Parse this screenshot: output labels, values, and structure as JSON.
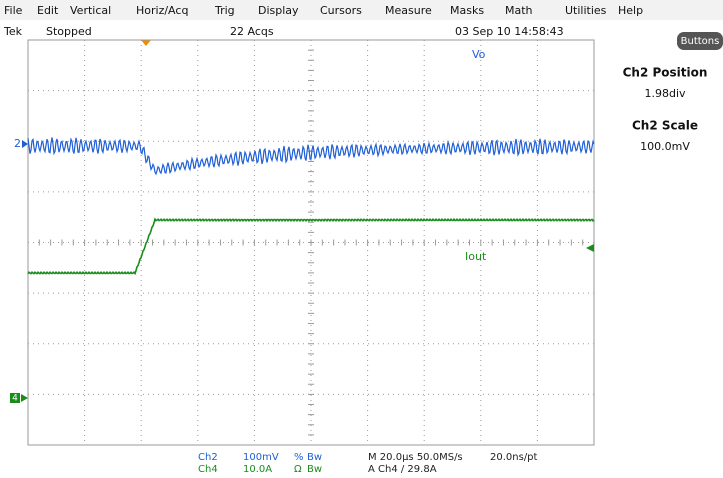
{
  "menu": [
    "File",
    "Edit",
    "Vertical",
    "Horiz/Acq",
    "Trig",
    "Display",
    "Cursors",
    "Measure",
    "Masks",
    "Math",
    "Utilities",
    "Help"
  ],
  "status": {
    "brand": "Tek",
    "state": "Stopped",
    "acqs": "22 Acqs",
    "datetime": "03 Sep 10 14:58:43"
  },
  "button": "Buttons",
  "side_panel": [
    {
      "label": "Ch2 Position",
      "value": "1.98div"
    },
    {
      "label": "Ch2 Scale",
      "value": "100.0mV"
    }
  ],
  "traces": {
    "ch2_marker": "2",
    "ch4_marker": "4",
    "ch2_label": "Vo",
    "ch4_label": "Iout"
  },
  "readout": {
    "row1": [
      "Ch2",
      "100mV",
      "%",
      "Bw",
      "M 20.0µs 50.0MS/s",
      "20.0ns/pt"
    ],
    "row2": [
      "Ch4",
      "10.0A",
      "Ω",
      "Bw",
      "A Ch4 / 29.8A"
    ]
  }
}
